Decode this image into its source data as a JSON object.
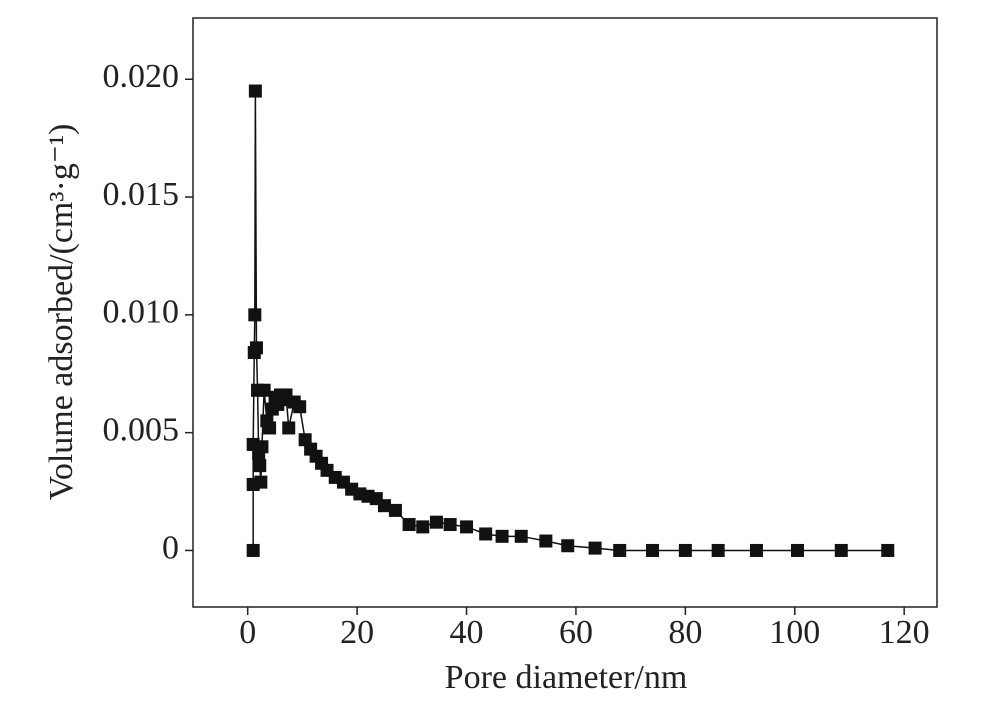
{
  "chart_data": {
    "type": "line",
    "xlabel": "Pore diameter/nm",
    "ylabel": "Volume adsorbed/(cm³·g⁻¹)",
    "xlim": [
      -10,
      126
    ],
    "ylim": [
      -0.0024,
      0.0226
    ],
    "xticks": [
      0,
      20,
      40,
      60,
      80,
      100,
      120
    ],
    "yticks": [
      0,
      0.005,
      {
        "value": 0.01,
        "label": "0.010"
      },
      0.015,
      {
        "value": 0.02,
        "label": "0.020"
      }
    ],
    "series": [
      {
        "color": "#111111",
        "x": [
          1.0,
          1.0,
          1.0,
          1.2,
          1.3,
          1.4,
          1.6,
          1.8,
          2.0,
          2.2,
          2.4,
          2.6,
          3.0,
          3.5,
          4.0,
          4.5,
          5.0,
          5.5,
          6.0,
          6.5,
          7.0,
          7.5,
          8.5,
          9.5,
          10.5,
          11.5,
          12.5,
          13.5,
          14.5,
          16,
          17.5,
          19,
          20.5,
          22,
          23.5,
          25,
          27,
          29.5,
          32,
          34.5,
          37,
          40,
          43.5,
          46.5,
          50,
          54.5,
          58.5,
          63.5,
          68,
          74,
          80,
          86,
          93,
          100.5,
          108.5,
          117
        ],
        "values": [
          0,
          0.0028,
          0.0045,
          0.0084,
          0.01,
          0.0195,
          0.0086,
          0.0068,
          0.0041,
          0.0036,
          0.0029,
          0.0044,
          0.0068,
          0.0055,
          0.0052,
          0.006,
          0.0065,
          0.0062,
          0.0066,
          0.0064,
          0.0066,
          0.0052,
          0.0063,
          0.0061,
          0.0047,
          0.0043,
          0.004,
          0.0037,
          0.0034,
          0.0031,
          0.0029,
          0.0026,
          0.0024,
          0.0023,
          0.0022,
          0.0019,
          0.0017,
          0.0011,
          0.001,
          0.0012,
          0.0011,
          0.001,
          0.0007,
          0.0006,
          0.0006,
          0.0004,
          0.0002,
          0.0001,
          0,
          0,
          0,
          0,
          0,
          0,
          0,
          0
        ]
      }
    ]
  }
}
